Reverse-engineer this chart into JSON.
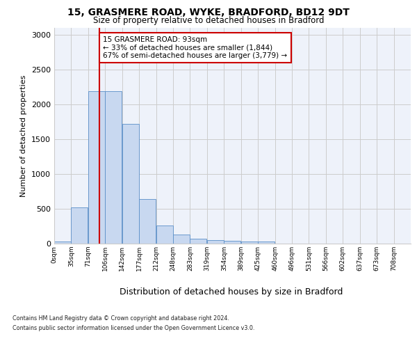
{
  "title1": "15, GRASMERE ROAD, WYKE, BRADFORD, BD12 9DT",
  "title2": "Size of property relative to detached houses in Bradford",
  "xlabel": "Distribution of detached houses by size in Bradford",
  "ylabel": "Number of detached properties",
  "bin_labels": [
    "0sqm",
    "35sqm",
    "71sqm",
    "106sqm",
    "142sqm",
    "177sqm",
    "212sqm",
    "248sqm",
    "283sqm",
    "319sqm",
    "354sqm",
    "389sqm",
    "425sqm",
    "460sqm",
    "496sqm",
    "531sqm",
    "566sqm",
    "602sqm",
    "637sqm",
    "673sqm",
    "708sqm"
  ],
  "bar_values": [
    28,
    520,
    2190,
    2190,
    1720,
    640,
    260,
    130,
    70,
    50,
    40,
    35,
    30,
    5,
    0,
    0,
    0,
    0,
    0,
    0,
    0
  ],
  "bar_color": "#c8d8f0",
  "bar_edge_color": "#5a8fc8",
  "property_sqm": 93,
  "annotation_line1": "15 GRASMERE ROAD: 93sqm",
  "annotation_line2": "← 33% of detached houses are smaller (1,844)",
  "annotation_line3": "67% of semi-detached houses are larger (3,779) →",
  "vline_color": "#cc0000",
  "annotation_box_facecolor": "#ffffff",
  "annotation_box_edgecolor": "#cc0000",
  "ylim": [
    0,
    3100
  ],
  "yticks": [
    0,
    500,
    1000,
    1500,
    2000,
    2500,
    3000
  ],
  "background_color": "#eef2fa",
  "grid_color": "#cccccc",
  "footer1": "Contains HM Land Registry data © Crown copyright and database right 2024.",
  "footer2": "Contains public sector information licensed under the Open Government Licence v3.0."
}
